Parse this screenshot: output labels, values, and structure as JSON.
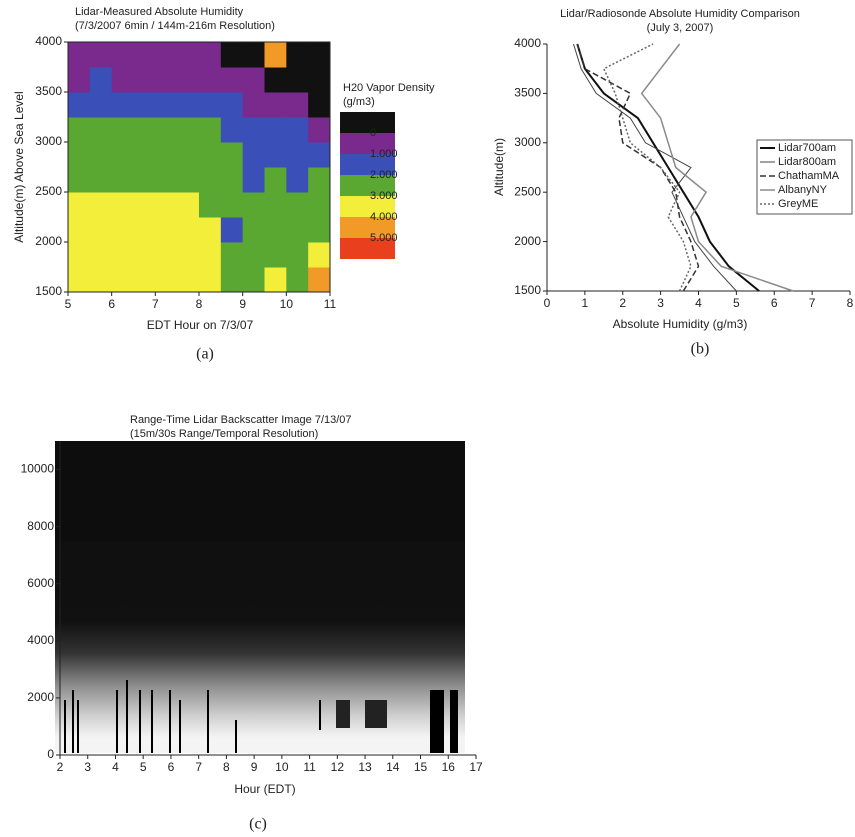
{
  "chart_data": [
    {
      "type": "heatmap",
      "caption": "(a)",
      "title": "Lidar-Measured Absolute Humidity",
      "subtitle": "(7/3/2007   6min / 144m-216m Resolution)",
      "xlabel": "EDT Hour on 7/3/07",
      "ylabel": "Altitude(m) Above Sea Level",
      "xlim": [
        5,
        11
      ],
      "xticks": [
        5,
        6,
        7,
        8,
        9,
        10,
        11
      ],
      "ylim": [
        1500,
        4000
      ],
      "yticks": [
        1500,
        2000,
        2500,
        3000,
        3500,
        4000
      ],
      "colorbar_title": [
        "H20 Vapor Density",
        "(g/m3)"
      ],
      "levels": [
        0,
        {
          "value": 1,
          "label": "1.000"
        },
        {
          "value": 2,
          "label": "2.000"
        },
        {
          "value": 3,
          "label": "3.000"
        },
        {
          "value": 4,
          "label": "4.000"
        },
        {
          "value": 5,
          "label": "5.000"
        }
      ],
      "colors": [
        "#111111",
        "#7a2a8c",
        "#3a4fb8",
        "#5aa832",
        "#f2ee3a",
        "#f29a28",
        "#e8401e"
      ],
      "x": [
        5.25,
        5.75,
        6.25,
        6.75,
        7.25,
        7.75,
        8.25,
        8.75,
        9.25,
        9.75,
        10.25,
        10.75
      ],
      "y": [
        1625,
        1875,
        2125,
        2375,
        2625,
        2875,
        3125,
        3375,
        3625,
        3875
      ],
      "z": [
        [
          3.5,
          3.5,
          3.5,
          3.6,
          3.5,
          3.5,
          3.4,
          2.5,
          2.6,
          3.0,
          2.8,
          4.2
        ],
        [
          3.5,
          3.5,
          3.4,
          3.5,
          3.4,
          3.5,
          3.3,
          2.4,
          2.5,
          2.8,
          2.7,
          3.2
        ],
        [
          3.4,
          3.4,
          3.3,
          3.4,
          3.5,
          3.3,
          3.2,
          1.8,
          2.5,
          2.6,
          2.5,
          2.8
        ],
        [
          3.3,
          3.2,
          3.4,
          3.2,
          3.3,
          3.1,
          2.8,
          2.0,
          2.3,
          2.4,
          2.3,
          2.6
        ],
        [
          2.6,
          2.5,
          2.8,
          2.6,
          2.5,
          2.4,
          2.3,
          2.1,
          1.9,
          2.0,
          1.8,
          2.0
        ],
        [
          2.5,
          2.4,
          2.6,
          2.5,
          2.4,
          2.3,
          2.4,
          2.2,
          1.9,
          1.6,
          1.5,
          1.4
        ],
        [
          2.3,
          2.2,
          2.4,
          2.3,
          2.2,
          2.3,
          2.1,
          1.8,
          1.5,
          1.2,
          1.0,
          0.6
        ],
        [
          1.4,
          1.3,
          1.5,
          1.6,
          1.4,
          1.5,
          1.3,
          1.2,
          0.9,
          0.6,
          0.3,
          -0.2
        ],
        [
          0.8,
          1.2,
          0.9,
          0.7,
          0.8,
          0.6,
          0.7,
          0.5,
          0.3,
          -0.3,
          -0.5,
          -0.6
        ],
        [
          0.4,
          0.5,
          0.6,
          0.3,
          0.6,
          0.2,
          0.3,
          -0.2,
          -0.4,
          4.6,
          -0.6,
          -0.7
        ]
      ]
    },
    {
      "type": "line",
      "caption": "(b)",
      "title": "Lidar/Radiosonde Absolute Humidity Comparison",
      "subtitle": "(July 3, 2007)",
      "xlabel": "Absolute Humidity (g/m3)",
      "ylabel": "Altitude(m)",
      "xlim": [
        0,
        8
      ],
      "xticks": [
        0,
        1,
        2,
        3,
        4,
        5,
        6,
        7,
        8
      ],
      "ylim": [
        1500,
        4000
      ],
      "yticks": [
        1500,
        2000,
        2500,
        3000,
        3500,
        4000
      ],
      "altitudes": [
        1500,
        1750,
        2000,
        2250,
        2500,
        2750,
        3000,
        3250,
        3500,
        3750,
        4000
      ],
      "series": [
        {
          "name": "Lidar700am",
          "color": "#111111",
          "dash": "solid",
          "width": 2,
          "values": [
            5.6,
            4.8,
            4.3,
            4.0,
            3.6,
            3.2,
            2.8,
            2.4,
            1.5,
            1.0,
            0.8
          ]
        },
        {
          "name": "Lidar800am",
          "color": "#444444",
          "dash": "solid",
          "width": 1,
          "values": [
            5.0,
            4.4,
            3.9,
            3.6,
            3.3,
            3.8,
            2.6,
            2.2,
            1.3,
            0.9,
            0.7
          ]
        },
        {
          "name": "ChathamMA",
          "color": "#333333",
          "dash": "dashed",
          "width": 1.5,
          "values": [
            3.6,
            4.0,
            3.8,
            3.5,
            3.4,
            3.0,
            2.0,
            1.9,
            2.2,
            1.0,
            0.8
          ]
        },
        {
          "name": "AlbanyNY",
          "color": "#8a8a8a",
          "dash": "solid",
          "width": 1.5,
          "values": [
            6.5,
            4.6,
            4.0,
            3.8,
            4.2,
            3.4,
            3.2,
            3.0,
            2.5,
            3.0,
            3.5
          ]
        },
        {
          "name": "GreyME",
          "color": "#666666",
          "dash": "dotted",
          "width": 1.5,
          "values": [
            3.5,
            3.8,
            3.6,
            3.2,
            3.5,
            3.0,
            2.2,
            2.0,
            1.8,
            1.5,
            2.8
          ]
        }
      ]
    },
    {
      "type": "image",
      "caption": "(c)",
      "title": "Range-Time Lidar Backscatter Image 7/13/07",
      "subtitle": "(15m/30s Range/Temporal Resolution)",
      "xlabel": "Hour (EDT)",
      "xlim": [
        2,
        17
      ],
      "xticks": [
        2,
        3,
        4,
        5,
        6,
        7,
        8,
        9,
        10,
        11,
        12,
        13,
        14,
        15,
        16,
        17
      ],
      "ylim": [
        0,
        11000
      ],
      "yticks": [
        0,
        2000,
        4000,
        6000,
        8000,
        10000
      ]
    }
  ]
}
